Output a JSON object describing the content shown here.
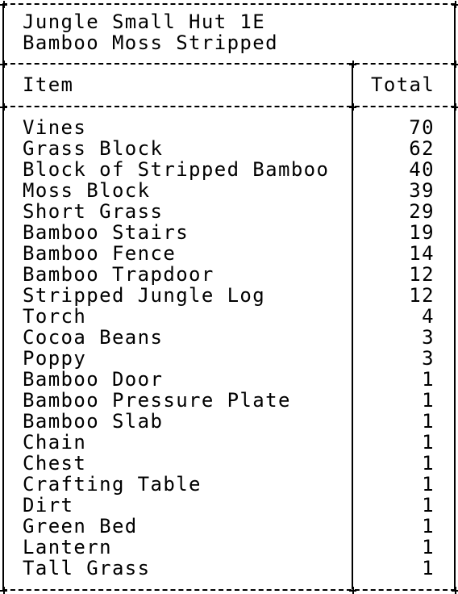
{
  "title": {
    "line1": "Jungle Small Hut 1E",
    "line2": "Bamboo Moss Stripped"
  },
  "columns": {
    "item": "Item",
    "total": "Total"
  },
  "rows": [
    {
      "item": "Vines",
      "total": "70"
    },
    {
      "item": "Grass Block",
      "total": "62"
    },
    {
      "item": "Block of Stripped Bamboo",
      "total": "40"
    },
    {
      "item": "Moss Block",
      "total": "39"
    },
    {
      "item": "Short Grass",
      "total": "29"
    },
    {
      "item": "Bamboo Stairs",
      "total": "19"
    },
    {
      "item": "Bamboo Fence",
      "total": "14"
    },
    {
      "item": "Bamboo Trapdoor",
      "total": "12"
    },
    {
      "item": "Stripped Jungle Log",
      "total": "12"
    },
    {
      "item": "Torch",
      "total": "4"
    },
    {
      "item": "Cocoa Beans",
      "total": "3"
    },
    {
      "item": "Poppy",
      "total": "3"
    },
    {
      "item": "Bamboo Door",
      "total": "1"
    },
    {
      "item": "Bamboo Pressure Plate",
      "total": "1"
    },
    {
      "item": "Bamboo Slab",
      "total": "1"
    },
    {
      "item": "Chain",
      "total": "1"
    },
    {
      "item": "Chest",
      "total": "1"
    },
    {
      "item": "Crafting Table",
      "total": "1"
    },
    {
      "item": "Dirt",
      "total": "1"
    },
    {
      "item": "Green Bed",
      "total": "1"
    },
    {
      "item": "Lantern",
      "total": "1"
    },
    {
      "item": "Tall Grass",
      "total": "1"
    }
  ]
}
